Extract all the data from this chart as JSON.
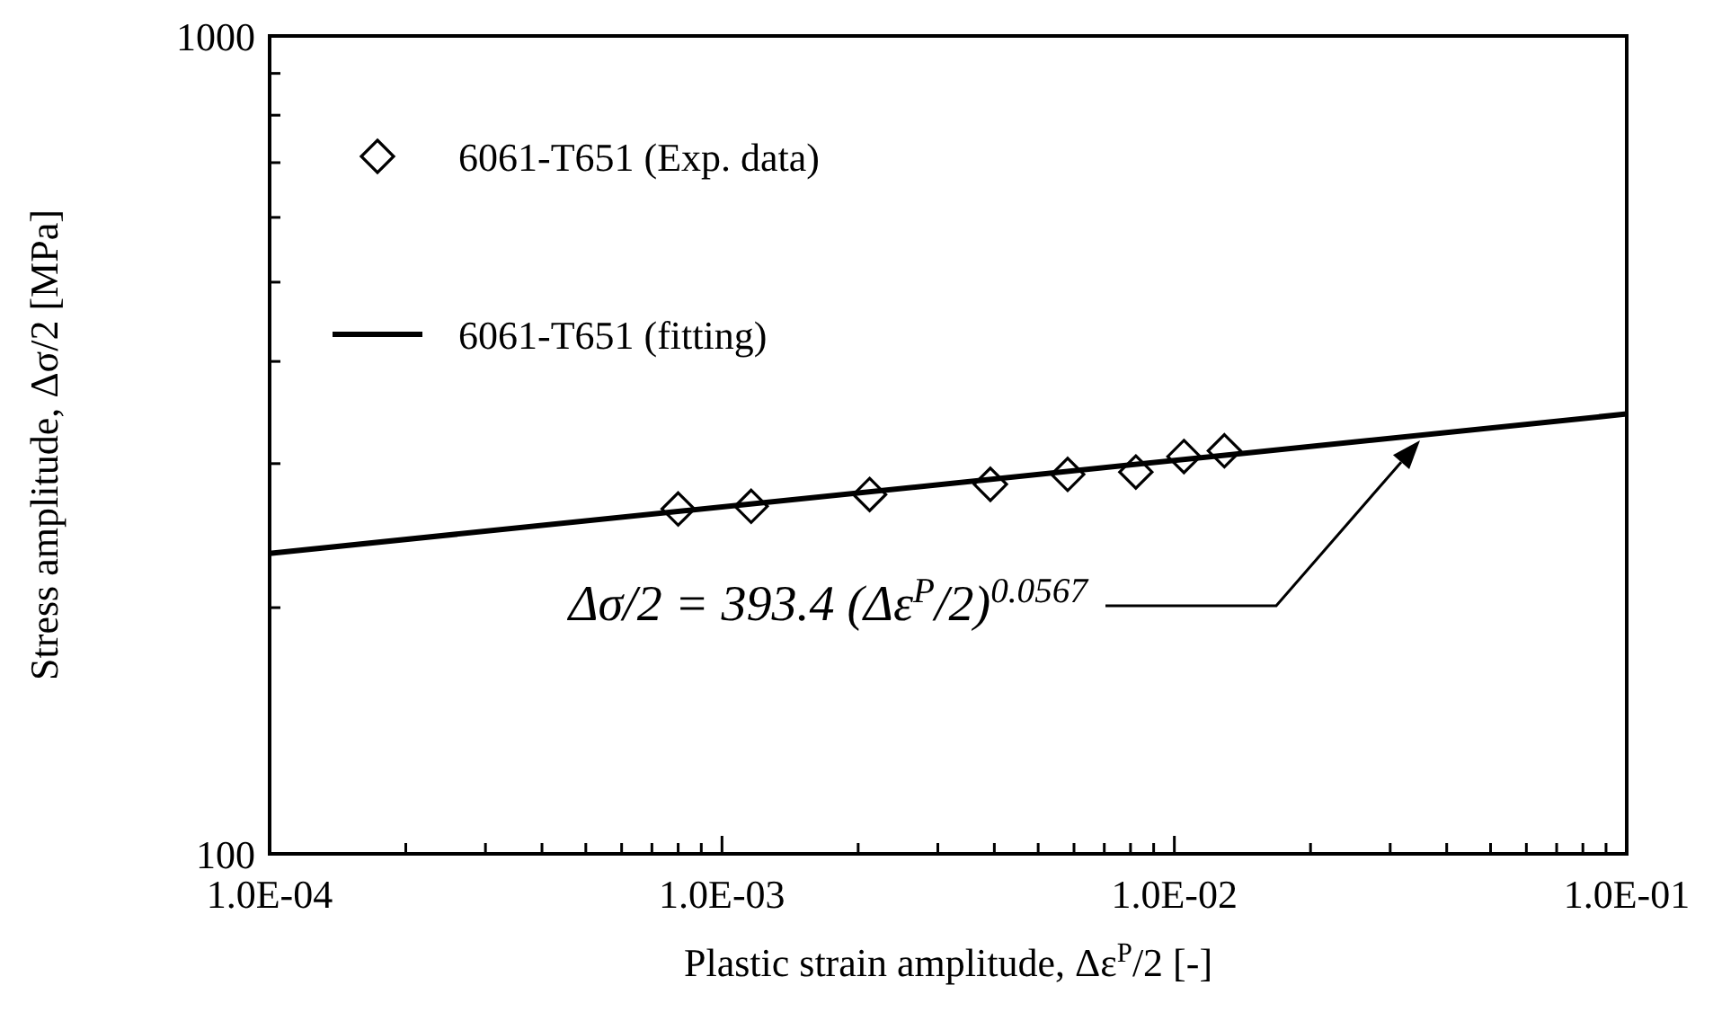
{
  "chart_data": {
    "type": "scatter",
    "xlabel": "Plastic strain amplitude, Δε$^{P}$/2 [-]",
    "ylabel": "Stress amplitude, Δσ/2 [MPa]",
    "log": "xy",
    "xlim": [
      0.0001,
      0.1
    ],
    "xticks": [
      {
        "value": 0.0001,
        "label": "1.0E-04"
      },
      {
        "value": 0.0002,
        "label": null
      },
      {
        "value": 0.0003,
        "label": null
      },
      {
        "value": 0.0004,
        "label": null
      },
      {
        "value": 0.0005,
        "label": null
      },
      {
        "value": 0.0006,
        "label": null
      },
      {
        "value": 0.0007,
        "label": null
      },
      {
        "value": 0.0008,
        "label": null
      },
      {
        "value": 0.0009,
        "label": null
      },
      {
        "value": 0.001,
        "label": "1.0E-03"
      },
      {
        "value": 0.002,
        "label": null
      },
      {
        "value": 0.003,
        "label": null
      },
      {
        "value": 0.004,
        "label": null
      },
      {
        "value": 0.005,
        "label": null
      },
      {
        "value": 0.006,
        "label": null
      },
      {
        "value": 0.007,
        "label": null
      },
      {
        "value": 0.008,
        "label": null
      },
      {
        "value": 0.009,
        "label": null
      },
      {
        "value": 0.01,
        "label": "1.0E-02"
      },
      {
        "value": 0.02,
        "label": null
      },
      {
        "value": 0.03,
        "label": null
      },
      {
        "value": 0.04,
        "label": null
      },
      {
        "value": 0.05,
        "label": null
      },
      {
        "value": 0.06,
        "label": null
      },
      {
        "value": 0.07,
        "label": null
      },
      {
        "value": 0.08,
        "label": null
      },
      {
        "value": 0.09,
        "label": null
      },
      {
        "value": 0.1,
        "label": "1.0E-01"
      }
    ],
    "ylim": [
      100,
      1000
    ],
    "yticks": [
      100,
      {
        "value": 200,
        "label": null
      },
      {
        "value": 300,
        "label": null
      },
      {
        "value": 400,
        "label": null
      },
      {
        "value": 500,
        "label": null
      },
      {
        "value": 600,
        "label": null
      },
      {
        "value": 700,
        "label": null
      },
      {
        "value": 800,
        "label": null
      },
      {
        "value": 900,
        "label": null
      },
      1000
    ],
    "legend": "top left",
    "grid": false,
    "series": [
      {
        "name": "6061-T651 (Exp. data)",
        "marker": "diamond",
        "color": "#000000",
        "x": [
          0.0008,
          0.00116,
          0.00212,
          0.00392,
          0.00581,
          0.00822,
          0.0105,
          0.0129
        ],
        "values": [
          264,
          266,
          275,
          283,
          291,
          293,
          306,
          311
        ]
      },
      {
        "name": "6061-T651 (fitting)",
        "type": "line",
        "line_style": "solid",
        "marker": "none",
        "color": "#000000",
        "x": [
          0.0001,
          0.1
        ],
        "values": [
          233,
          345
        ]
      }
    ],
    "annotations": [
      "Δσ/2 = 393.4 (Δε$^{P}$/2)$^{0.0567}$"
    ]
  }
}
